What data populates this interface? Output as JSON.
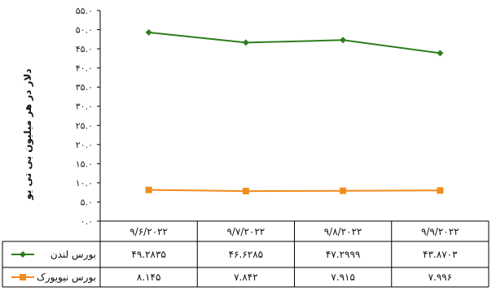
{
  "chart_data": {
    "type": "line",
    "title": "",
    "xlabel": "",
    "ylabel": "دلار در هر میلیون بی تی یو",
    "ylim": [
      0,
      55
    ],
    "y_ticks": [
      "۰.۰",
      "۵.۰",
      "۱۰.۰",
      "۱۵.۰",
      "۲۰.۰",
      "۲۵.۰",
      "۳۰.۰",
      "۳۵.۰",
      "۴۰.۰",
      "۴۵.۰",
      "۵۰.۰",
      "۵۵.۰"
    ],
    "y_tick_values": [
      0,
      5,
      10,
      15,
      20,
      25,
      30,
      35,
      40,
      45,
      50,
      55
    ],
    "grid": false,
    "legend": "data-table",
    "categories": [
      "۹/۶/۲۰۲۲",
      "۹/۷/۲۰۲۲",
      "۹/۸/۲۰۲۲",
      "۹/۹/۲۰۲۲"
    ],
    "series": [
      {
        "name": "بورس لندن",
        "color": "#2e7d1e",
        "marker": "diamond",
        "values": [
          49.2835,
          46.6285,
          47.2999,
          43.8703
        ],
        "value_labels": [
          "۴۹.۲۸۳۵",
          "۴۶.۶۲۸۵",
          "۴۷.۲۹۹۹",
          "۴۳.۸۷۰۳"
        ]
      },
      {
        "name": "بورس نیویورک",
        "color": "#f08c1e",
        "marker": "square",
        "values": [
          8.145,
          7.842,
          7.915,
          7.996
        ],
        "value_labels": [
          "۸.۱۴۵",
          "۷.۸۴۲",
          "۷.۹۱۵",
          "۷.۹۹۶"
        ]
      }
    ]
  }
}
